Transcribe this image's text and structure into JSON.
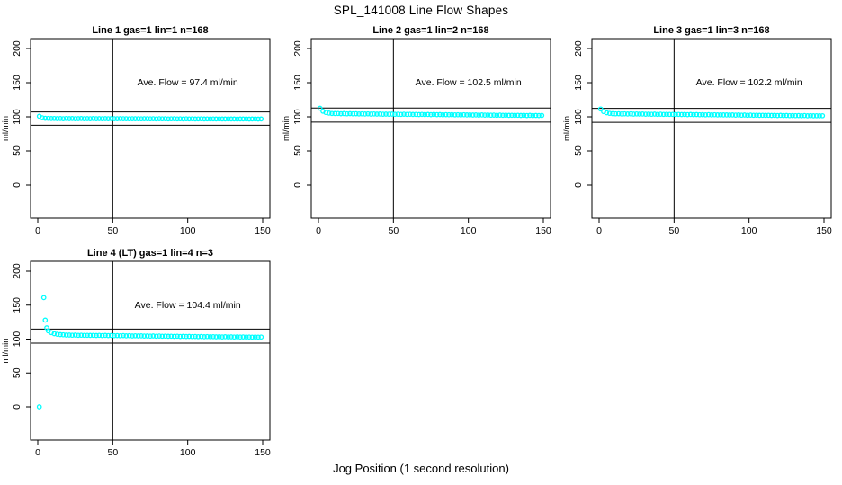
{
  "main_title": "SPL_141008  Line Flow Shapes",
  "x_axis_label": "Jog Position (1 second resolution)",
  "point_color": "#00FFFF",
  "line_color": "#000000",
  "chart_data": [
    {
      "type": "scatter",
      "title": "Line 1 gas=1 lin=1 n=168",
      "annotation": "Ave. Flow =  97.4  ml/min",
      "ave_flow": 97.4,
      "ylabel": "ml/min",
      "xlim": [
        0,
        150
      ],
      "ylim": [
        0,
        200
      ],
      "xticks": [
        0,
        50,
        100,
        150
      ],
      "yticks": [
        0,
        50,
        100,
        150,
        200
      ],
      "vline": 50,
      "hlines": [
        107.1,
        87.7
      ],
      "annotation_pos": [
        100,
        150
      ],
      "x": [
        1,
        3,
        5,
        7,
        9,
        11,
        13,
        15,
        17,
        19,
        21,
        23,
        25,
        27,
        29,
        31,
        33,
        35,
        37,
        39,
        41,
        43,
        45,
        47,
        49,
        51,
        53,
        55,
        57,
        59,
        61,
        63,
        65,
        67,
        69,
        71,
        73,
        75,
        77,
        79,
        81,
        83,
        85,
        87,
        89,
        91,
        93,
        95,
        97,
        99,
        101,
        103,
        105,
        107,
        109,
        111,
        113,
        115,
        117,
        119,
        121,
        123,
        125,
        127,
        129,
        131,
        133,
        135,
        137,
        139,
        141,
        143,
        145,
        147,
        149
      ],
      "y": [
        100.8,
        98.5,
        97.9,
        97.7,
        97.5,
        97.6,
        97.4,
        97.5,
        97.3,
        97.6,
        97.4,
        97.5,
        97.3,
        97.4,
        97.5,
        97.3,
        97.4,
        97.2,
        97.5,
        97.3,
        97.4,
        97.2,
        97.4,
        97.3,
        97.4,
        97.2,
        97.3,
        97.4,
        97.2,
        97.3,
        97.1,
        97.3,
        97.2,
        97.3,
        97.1,
        97.2,
        97.3,
        97.1,
        97.2,
        97.0,
        97.2,
        97.1,
        97.2,
        97.0,
        97.1,
        97.2,
        97.0,
        97.1,
        96.9,
        97.1,
        97.0,
        97.1,
        96.9,
        97.0,
        97.1,
        96.9,
        97.0,
        96.8,
        97.0,
        96.9,
        97.0,
        96.8,
        96.9,
        97.0,
        96.8,
        96.9,
        96.7,
        96.9,
        96.8,
        96.9,
        96.7,
        96.8,
        96.9,
        96.7,
        96.8
      ]
    },
    {
      "type": "scatter",
      "title": "Line 2 gas=1 lin=2 n=168",
      "annotation": "Ave. Flow =  102.5  ml/min",
      "ave_flow": 102.5,
      "ylabel": "ml/min",
      "xlim": [
        0,
        150
      ],
      "ylim": [
        0,
        200
      ],
      "xticks": [
        0,
        50,
        100,
        150
      ],
      "yticks": [
        0,
        50,
        100,
        150,
        200
      ],
      "vline": 50,
      "hlines": [
        112.8,
        92.3
      ],
      "annotation_pos": [
        100,
        150
      ],
      "x": [
        1,
        3,
        5,
        7,
        9,
        11,
        13,
        15,
        17,
        19,
        21,
        23,
        25,
        27,
        29,
        31,
        33,
        35,
        37,
        39,
        41,
        43,
        45,
        47,
        49,
        51,
        53,
        55,
        57,
        59,
        61,
        63,
        65,
        67,
        69,
        71,
        73,
        75,
        77,
        79,
        81,
        83,
        85,
        87,
        89,
        91,
        93,
        95,
        97,
        99,
        101,
        103,
        105,
        107,
        109,
        111,
        113,
        115,
        117,
        119,
        121,
        123,
        125,
        127,
        129,
        131,
        133,
        135,
        137,
        139,
        141,
        143,
        145,
        147,
        149
      ],
      "y": [
        112.5,
        108.2,
        106.3,
        105.4,
        104.9,
        104.7,
        104.9,
        104.5,
        104.7,
        104.4,
        104.6,
        104.3,
        104.5,
        104.2,
        104.4,
        104.1,
        104.3,
        104.0,
        104.2,
        103.9,
        104.1,
        103.8,
        104.0,
        103.8,
        103.9,
        103.7,
        103.8,
        103.6,
        103.8,
        103.5,
        103.7,
        103.4,
        103.6,
        103.3,
        103.5,
        103.3,
        103.4,
        103.2,
        103.4,
        103.1,
        103.3,
        103.0,
        103.2,
        103.0,
        103.1,
        102.9,
        103.0,
        102.8,
        103.0,
        102.7,
        102.9,
        102.6,
        102.8,
        102.5,
        102.7,
        102.5,
        102.6,
        102.4,
        102.5,
        102.3,
        102.5,
        102.2,
        102.4,
        102.1,
        102.3,
        102.1,
        102.2,
        102.0,
        102.2,
        101.9,
        102.1,
        101.9,
        102.0,
        101.8,
        102.0
      ]
    },
    {
      "type": "scatter",
      "title": "Line 3 gas=1 lin=3 n=168",
      "annotation": "Ave. Flow =  102.2  ml/min",
      "ave_flow": 102.2,
      "ylabel": "ml/min",
      "xlim": [
        0,
        150
      ],
      "ylim": [
        0,
        200
      ],
      "xticks": [
        0,
        50,
        100,
        150
      ],
      "yticks": [
        0,
        50,
        100,
        150,
        200
      ],
      "vline": 50,
      "hlines": [
        112.4,
        92.0
      ],
      "annotation_pos": [
        100,
        150
      ],
      "x": [
        1,
        3,
        5,
        7,
        9,
        11,
        13,
        15,
        17,
        19,
        21,
        23,
        25,
        27,
        29,
        31,
        33,
        35,
        37,
        39,
        41,
        43,
        45,
        47,
        49,
        51,
        53,
        55,
        57,
        59,
        61,
        63,
        65,
        67,
        69,
        71,
        73,
        75,
        77,
        79,
        81,
        83,
        85,
        87,
        89,
        91,
        93,
        95,
        97,
        99,
        101,
        103,
        105,
        107,
        109,
        111,
        113,
        115,
        117,
        119,
        121,
        123,
        125,
        127,
        129,
        131,
        133,
        135,
        137,
        139,
        141,
        143,
        145,
        147,
        149
      ],
      "y": [
        111.5,
        107.6,
        105.9,
        105.0,
        104.6,
        104.4,
        104.5,
        104.2,
        104.4,
        104.1,
        104.3,
        104.0,
        104.2,
        103.9,
        104.1,
        103.8,
        104.0,
        103.7,
        103.9,
        103.6,
        103.8,
        103.5,
        103.7,
        103.5,
        103.6,
        103.4,
        103.5,
        103.3,
        103.4,
        103.2,
        103.4,
        103.1,
        103.3,
        103.0,
        103.2,
        102.9,
        103.1,
        102.8,
        103.0,
        102.8,
        102.9,
        102.7,
        102.8,
        102.6,
        102.7,
        102.5,
        102.7,
        102.4,
        102.6,
        102.3,
        102.5,
        102.2,
        102.4,
        102.1,
        102.3,
        102.1,
        102.2,
        102.0,
        102.1,
        101.9,
        102.1,
        101.8,
        102.0,
        101.7,
        101.9,
        101.7,
        101.8,
        101.6,
        101.8,
        101.5,
        101.7,
        101.5,
        101.6,
        101.4,
        101.6
      ]
    },
    {
      "type": "scatter",
      "title": "Line 4 (LT) gas=1 lin=4 n=3",
      "annotation": "Ave. Flow =  104.4  ml/min",
      "ave_flow": 104.4,
      "ylabel": "ml/min",
      "xlim": [
        0,
        150
      ],
      "ylim": [
        0,
        200
      ],
      "xticks": [
        0,
        50,
        100,
        150
      ],
      "yticks": [
        0,
        50,
        100,
        150,
        200
      ],
      "vline": 50,
      "hlines": [
        114.8,
        94.0
      ],
      "annotation_pos": [
        100,
        150
      ],
      "x": [
        1,
        4,
        5,
        6,
        7,
        9,
        11,
        13,
        15,
        17,
        19,
        21,
        23,
        25,
        27,
        29,
        31,
        33,
        35,
        37,
        39,
        41,
        43,
        45,
        47,
        49,
        51,
        53,
        55,
        57,
        59,
        61,
        63,
        65,
        67,
        69,
        71,
        73,
        75,
        77,
        79,
        81,
        83,
        85,
        87,
        89,
        91,
        93,
        95,
        97,
        99,
        101,
        103,
        105,
        107,
        109,
        111,
        113,
        115,
        117,
        119,
        121,
        123,
        125,
        127,
        129,
        131,
        133,
        135,
        137,
        139,
        141,
        143,
        145,
        147,
        149
      ],
      "y": [
        0,
        161,
        128,
        116.5,
        112.0,
        109.5,
        108.0,
        107.2,
        106.6,
        106.3,
        106.0,
        105.9,
        105.7,
        105.9,
        105.6,
        105.7,
        105.5,
        105.6,
        105.4,
        105.6,
        105.3,
        105.5,
        105.2,
        105.4,
        105.1,
        105.3,
        105.0,
        105.2,
        104.9,
        105.1,
        104.8,
        105.0,
        104.7,
        104.9,
        104.6,
        104.8,
        104.5,
        104.7,
        104.4,
        104.6,
        104.3,
        104.5,
        104.2,
        104.4,
        104.1,
        104.3,
        104.0,
        104.2,
        103.9,
        104.1,
        103.8,
        104.0,
        103.7,
        103.9,
        103.6,
        103.8,
        103.5,
        103.7,
        103.4,
        103.6,
        103.3,
        103.5,
        103.2,
        103.4,
        103.2,
        103.3,
        103.1,
        103.3,
        103.0,
        103.2,
        103.0,
        103.1,
        102.9,
        103.1,
        102.9,
        103.0
      ]
    }
  ]
}
